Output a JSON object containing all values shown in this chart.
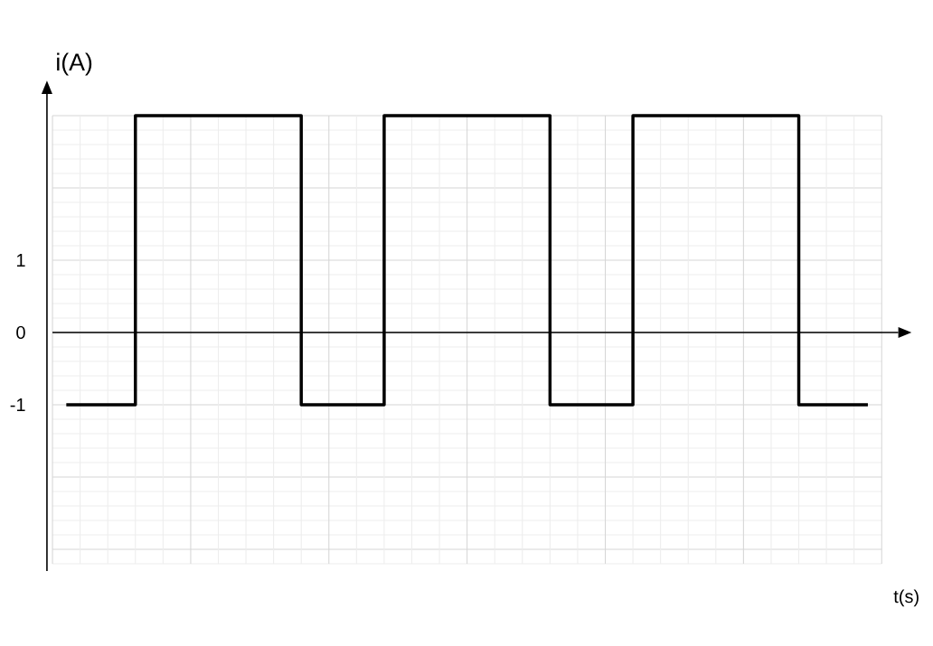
{
  "chart_data": {
    "type": "step",
    "xlabel": "t(s)",
    "ylabel": "i(A)",
    "categories": [
      null,
      null,
      null,
      null,
      null,
      null,
      null,
      null,
      null,
      null,
      null,
      null,
      null,
      null,
      null,
      null,
      null,
      null,
      null,
      null,
      null,
      null,
      null,
      null,
      null,
      null,
      null,
      null,
      null,
      null
    ],
    "series": [
      {
        "color": "#000000",
        "values": [
          -1,
          -1,
          -1,
          3,
          3,
          3,
          3,
          3,
          3,
          -1,
          -1,
          -1,
          3,
          3,
          3,
          3,
          3,
          3,
          -1,
          -1,
          -1,
          3,
          3,
          3,
          3,
          3,
          3,
          -1,
          -1,
          -1
        ]
      }
    ],
    "ylim": [
      -3.3,
      3.3
    ],
    "yticks": [
      -1,
      0,
      1
    ],
    "grid": true,
    "marker": "none",
    "line_style": "solid"
  }
}
